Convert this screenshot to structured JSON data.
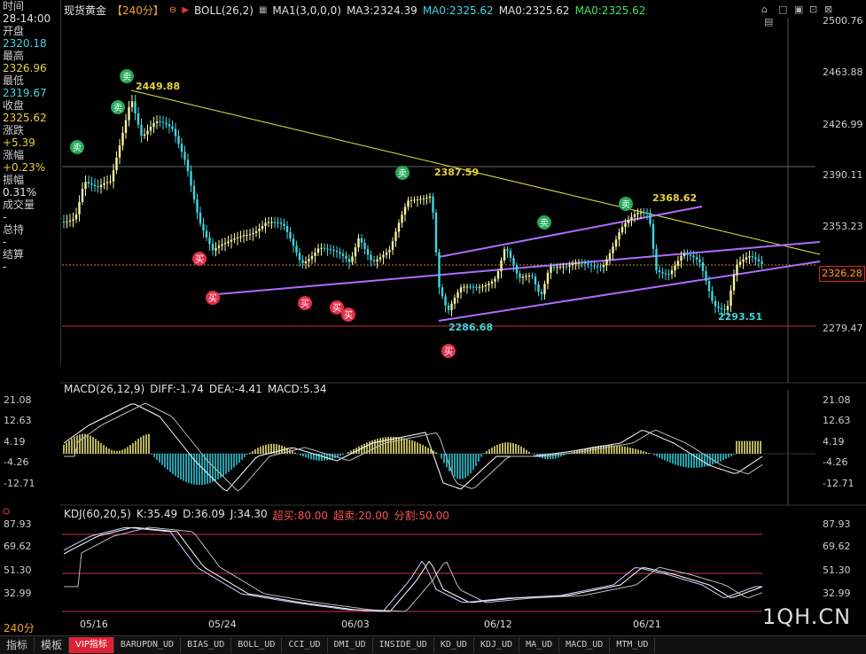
{
  "header": {
    "symbol": "现货黄金",
    "period_tag": "【240分】",
    "boll": "BOLL(26,2)",
    "ma1": "MA1(3,0,0,0)",
    "ma3": "MA3:2324.39",
    "ma0a": "MA0:2325.62",
    "ma0b": "MA0:2325.62",
    "ma0c": "MA0:2325.62"
  },
  "info_panel": {
    "time_label": "时间",
    "time_value": "28-14:00",
    "open_label": "开盘",
    "open_value": "2320.18",
    "high_label": "最高",
    "high_value": "2326.96",
    "low_label": "最低",
    "low_value": "2319.67",
    "close_label": "收盘",
    "close_value": "2325.62",
    "change_label": "涨跌",
    "change_value": "+5.39",
    "pct_label": "涨幅",
    "pct_value": "+0.23%",
    "amp_label": "振幅",
    "amp_value": "0.31%",
    "vol_label": "成交量",
    "vol_value": "-",
    "oi_label": "总持",
    "oi_value": "-",
    "settle_label": "结算",
    "settle_value": "-"
  },
  "price_axis": [
    "2500.76",
    "2463.88",
    "2426.99",
    "2390.11",
    "2353.23",
    "2279.47"
  ],
  "current_price": "2326.28",
  "annotations": {
    "high1": "2449.88",
    "high2": "2387.59",
    "high3": "2368.62",
    "low1": "2286.68",
    "low2": "2293.51",
    "sell": "卖",
    "buy": "买"
  },
  "macd": {
    "head": "MACD(26,12,9)",
    "diff": "DIFF:-1.74",
    "dea": "DEA:-4.41",
    "macd": "MACD:5.34",
    "ticks": [
      "21.08",
      "12.63",
      "4.19",
      "-4.26",
      "-12.71"
    ]
  },
  "kdj": {
    "head": "KDJ(60,20,5)",
    "k": "K:35.49",
    "d": "D:36.09",
    "j": "J:34.30",
    "buy": "超买:80.00",
    "sell": "超卖:20.00",
    "split": "分割:50.00",
    "ticks": [
      "87.93",
      "69.62",
      "51.30",
      "32.99"
    ]
  },
  "x_axis": [
    "05/16",
    "05/24",
    "06/03",
    "06/12",
    "06/21"
  ],
  "period": "240分",
  "logo": "1QH.CN",
  "tabs": [
    "指标",
    "模板",
    "VIP指标",
    "BARUPDN_UD",
    "BIAS_UD",
    "BOLL_UD",
    "CCI_UD",
    "DMI_UD",
    "INSIDE_UD",
    "KD_UD",
    "KDJ_UD",
    "MA_UD",
    "MACD_UD",
    "MTM_UD"
  ],
  "colors": {
    "up": "#ff4040",
    "down": "#3fd6e0",
    "ma": "#e6d33a",
    "channel": "#b06cff",
    "trend": "#e6e645"
  }
}
